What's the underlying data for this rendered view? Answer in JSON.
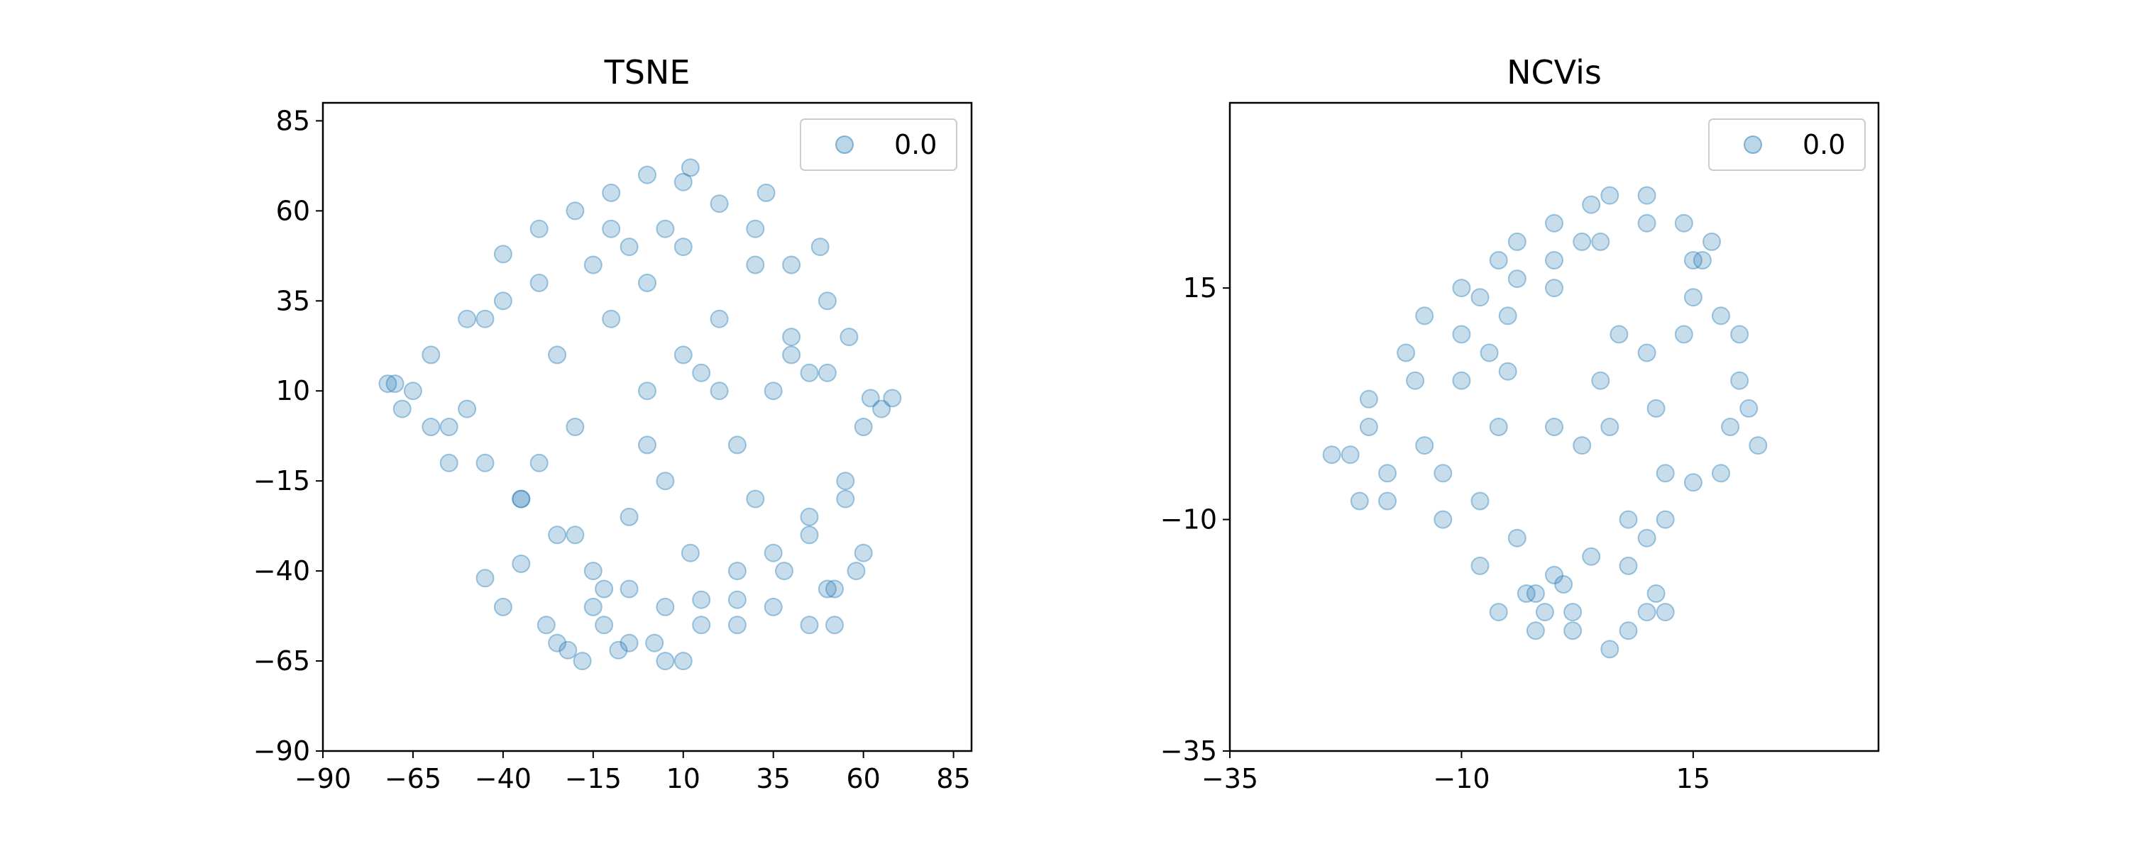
{
  "colors": {
    "points": "#1f77b4",
    "axes": "#000000",
    "background": "#ffffff",
    "legend_border": "#cccccc"
  },
  "chart_data": [
    {
      "type": "scatter",
      "title": "TSNE",
      "xlabel": "",
      "ylabel": "",
      "xlim": [
        -90,
        90
      ],
      "ylim": [
        -90,
        90
      ],
      "xticks": [
        -90,
        -65,
        -40,
        -15,
        10,
        35,
        60,
        85
      ],
      "yticks": [
        -90,
        -65,
        -40,
        -15,
        10,
        35,
        60,
        85
      ],
      "grid": false,
      "legend_position": "top-right",
      "point_alpha": 0.25,
      "series": [
        {
          "name": "0.0",
          "x": [
            -20,
            -10,
            0,
            10,
            20,
            30,
            40,
            50,
            -30,
            -40,
            -50,
            -60,
            -65,
            -70,
            -55,
            -45,
            -35,
            -25,
            -15,
            -5,
            5,
            15,
            25,
            35,
            45,
            55,
            60,
            0,
            -10,
            10,
            20,
            -20,
            -30,
            30,
            -40,
            40,
            50,
            -50,
            0,
            5,
            -5,
            12,
            -12,
            25,
            -25,
            35,
            -35,
            45,
            -45,
            55,
            -55,
            58,
            -60,
            30,
            -30,
            10,
            -10,
            0,
            20,
            -20,
            40,
            -40,
            50,
            60,
            65,
            68,
            -68,
            -72,
            -28,
            -15,
            -8,
            2,
            10,
            12,
            33,
            48,
            52,
            56,
            62,
            -22,
            -18,
            -12,
            -5,
            5,
            15,
            25,
            38,
            45,
            52,
            5,
            -5,
            -15,
            15,
            25,
            -25,
            35,
            -35,
            45,
            -45
          ],
          "y": [
            60,
            65,
            70,
            68,
            62,
            55,
            45,
            35,
            55,
            48,
            30,
            20,
            10,
            12,
            0,
            -10,
            -20,
            -30,
            -40,
            -45,
            -50,
            -48,
            -40,
            -35,
            -25,
            -15,
            0,
            40,
            30,
            20,
            10,
            0,
            -10,
            -20,
            35,
            25,
            15,
            5,
            -5,
            -15,
            -25,
            -35,
            -45,
            -55,
            -60,
            -50,
            -38,
            -30,
            -42,
            -20,
            -10,
            -40,
            0,
            45,
            40,
            50,
            55,
            10,
            30,
            -30,
            20,
            -50,
            -45,
            -35,
            5,
            8,
            5,
            12,
            -55,
            -50,
            -62,
            -60,
            -65,
            72,
            65,
            50,
            -55,
            25,
            8,
            -62,
            -65,
            -55,
            -60,
            -65,
            -55,
            -48,
            -40,
            -55,
            -45,
            55,
            50,
            45,
            15,
            -5,
            20,
            10,
            -20,
            15,
            30
          ]
        }
      ]
    },
    {
      "type": "scatter",
      "title": "NCVis",
      "xlabel": "",
      "ylabel": "",
      "xlim": [
        -35,
        35
      ],
      "ylim": [
        -35,
        35
      ],
      "xticks": [
        -35,
        -10,
        15
      ],
      "yticks": [
        -35,
        -10,
        15
      ],
      "grid": false,
      "legend_position": "top-right",
      "point_alpha": 0.25,
      "series": [
        {
          "name": "0.0",
          "x": [
            -20,
            -15,
            -10,
            -5,
            0,
            5,
            10,
            15,
            20,
            -18,
            -12,
            -8,
            -2,
            2,
            8,
            12,
            18,
            -22,
            -20,
            -16,
            -14,
            -10,
            -6,
            -4,
            0,
            4,
            6,
            10,
            14,
            16,
            20,
            -12,
            -8,
            -4,
            0,
            4,
            8,
            12,
            -10,
            -6,
            0,
            6,
            10,
            14,
            18,
            -14,
            -18,
            -6,
            -2,
            2,
            6,
            12,
            5,
            10,
            -8,
            -4,
            0,
            3,
            7,
            11,
            15,
            19,
            -24,
            -21,
            21,
            22,
            8,
            10,
            11,
            -3,
            -1,
            1,
            -5,
            3,
            -7,
            15,
            17
          ],
          "y": [
            0,
            5,
            10,
            12,
            15,
            20,
            22,
            18,
            10,
            -5,
            -10,
            -15,
            -18,
            -20,
            -15,
            -10,
            -5,
            -3,
            3,
            8,
            12,
            15,
            18,
            20,
            22,
            24,
            25,
            25,
            22,
            18,
            5,
            -5,
            -8,
            -12,
            -16,
            -14,
            -10,
            -5,
            5,
            0,
            0,
            0,
            8,
            10,
            12,
            -2,
            -8,
            -20,
            -22,
            -22,
            -24,
            -20,
            5,
            -12,
            14,
            16,
            18,
            20,
            10,
            2,
            -6,
            0,
            -3,
            -8,
            2,
            -2,
            -22,
            -20,
            -18,
            -18,
            -20,
            -17,
            6,
            -2,
            8,
            14,
            20
          ]
        }
      ]
    }
  ]
}
